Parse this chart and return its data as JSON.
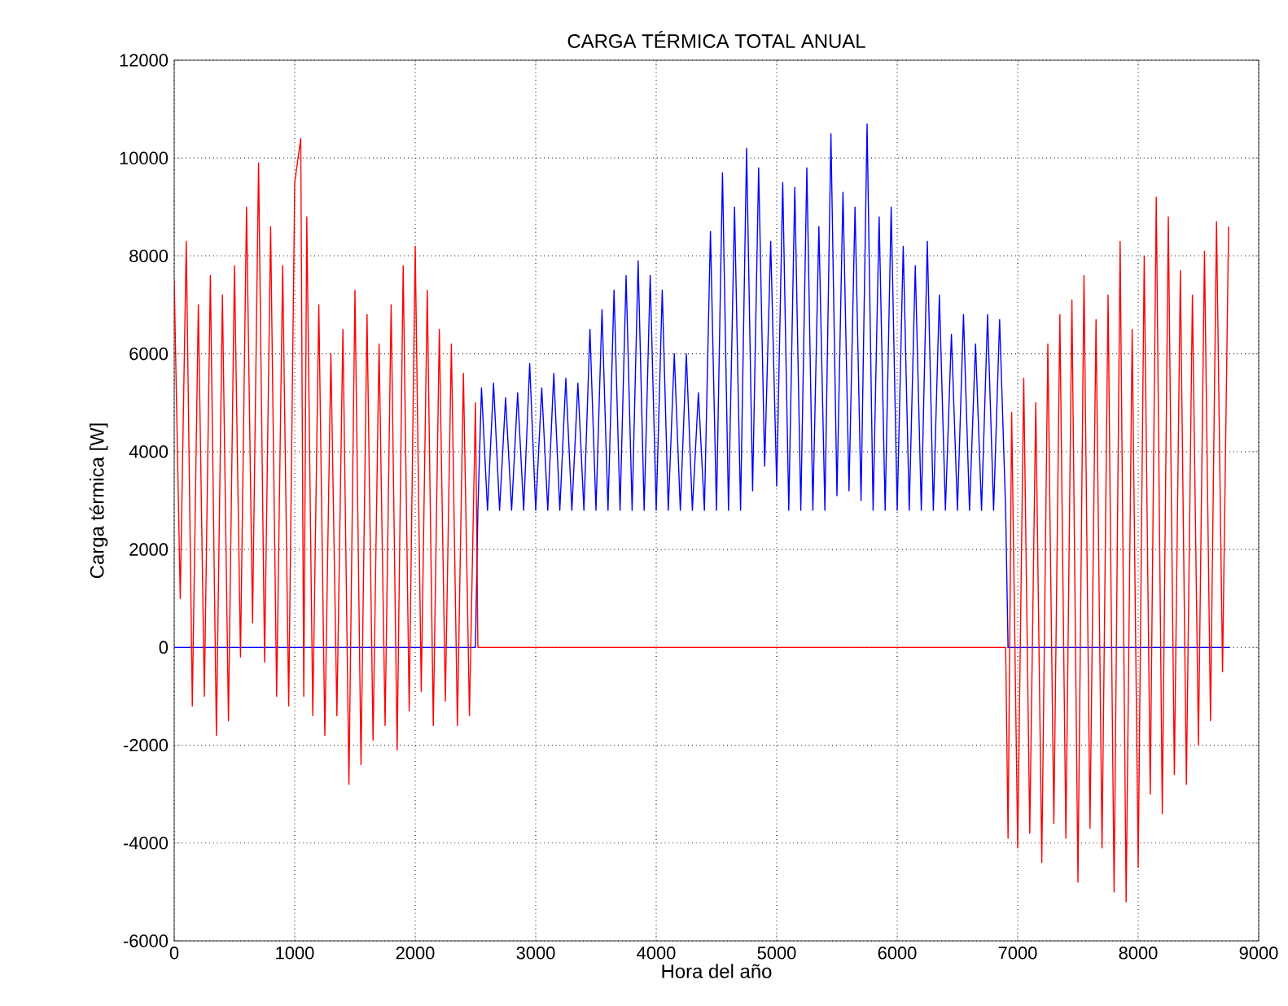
{
  "chart_data": {
    "type": "line",
    "title": "CARGA TÉRMICA TOTAL ANUAL",
    "xlabel": "Hora del año",
    "ylabel": "Carga térmica [W]",
    "xlim": [
      0,
      9000
    ],
    "xticks": [
      0,
      1000,
      2000,
      3000,
      4000,
      5000,
      6000,
      7000,
      8000,
      9000
    ],
    "ylim": [
      -6000,
      12000
    ],
    "yticks": [
      -6000,
      -4000,
      -2000,
      0,
      2000,
      4000,
      6000,
      8000,
      10000,
      12000
    ],
    "grid": true,
    "marker": "none",
    "line_style": "solid",
    "series": [
      {
        "color": "#0000ff",
        "x": [
          0,
          2500,
          2520,
          2550,
          2600,
          2650,
          2700,
          2750,
          2800,
          2850,
          2900,
          2950,
          3000,
          3050,
          3100,
          3150,
          3200,
          3250,
          3300,
          3350,
          3400,
          3450,
          3500,
          3550,
          3600,
          3650,
          3700,
          3750,
          3800,
          3850,
          3900,
          3950,
          4000,
          4050,
          4100,
          4150,
          4200,
          4250,
          4300,
          4350,
          4400,
          4450,
          4500,
          4550,
          4600,
          4650,
          4700,
          4750,
          4800,
          4850,
          4900,
          4950,
          5000,
          5050,
          5100,
          5150,
          5200,
          5250,
          5300,
          5350,
          5400,
          5450,
          5500,
          5550,
          5600,
          5650,
          5700,
          5750,
          5800,
          5850,
          5900,
          5950,
          6000,
          6050,
          6100,
          6150,
          6200,
          6250,
          6300,
          6350,
          6400,
          6450,
          6500,
          6550,
          6600,
          6650,
          6700,
          6750,
          6800,
          6850,
          6900,
          6920,
          8760
        ],
        "values": [
          0,
          0,
          2800,
          5300,
          2800,
          5400,
          2800,
          5100,
          2800,
          5200,
          2800,
          5800,
          2800,
          5300,
          2800,
          5600,
          2800,
          5500,
          2800,
          5400,
          2800,
          6500,
          2800,
          6900,
          2800,
          7300,
          2800,
          7600,
          2800,
          7900,
          2800,
          7600,
          2800,
          7300,
          2800,
          6000,
          2800,
          6000,
          2800,
          5200,
          2800,
          8500,
          2800,
          9700,
          2800,
          9000,
          2800,
          10200,
          3200,
          9800,
          3700,
          8300,
          3300,
          9500,
          2800,
          9400,
          2800,
          9800,
          2800,
          8600,
          2800,
          10500,
          3100,
          9300,
          3200,
          9000,
          3000,
          10700,
          2800,
          8800,
          2800,
          9000,
          2800,
          8200,
          2800,
          7800,
          2800,
          8300,
          2800,
          7200,
          2800,
          6400,
          2800,
          6800,
          2800,
          6200,
          2800,
          6800,
          2800,
          6700,
          2800,
          0,
          0
        ]
      },
      {
        "color": "#ff0000",
        "x": [
          0,
          50,
          100,
          150,
          200,
          250,
          300,
          350,
          400,
          450,
          500,
          550,
          600,
          650,
          700,
          750,
          800,
          850,
          900,
          950,
          1000,
          1050,
          1075,
          1100,
          1150,
          1200,
          1250,
          1300,
          1350,
          1400,
          1450,
          1500,
          1550,
          1600,
          1650,
          1700,
          1750,
          1800,
          1850,
          1900,
          1950,
          2000,
          2050,
          2100,
          2150,
          2200,
          2250,
          2300,
          2350,
          2400,
          2450,
          2500,
          2520,
          6900,
          6920,
          6950,
          7000,
          7050,
          7100,
          7150,
          7200,
          7250,
          7300,
          7350,
          7400,
          7450,
          7500,
          7550,
          7600,
          7650,
          7700,
          7750,
          7800,
          7850,
          7900,
          7950,
          8000,
          8050,
          8100,
          8150,
          8200,
          8250,
          8300,
          8350,
          8400,
          8450,
          8500,
          8550,
          8600,
          8650,
          8700,
          8750
        ],
        "values": [
          7500,
          1000,
          8300,
          -1200,
          7000,
          -1000,
          7600,
          -1800,
          7200,
          -1500,
          7800,
          -200,
          9000,
          500,
          9900,
          -300,
          8600,
          -1000,
          7800,
          -1200,
          9500,
          10400,
          -1000,
          8800,
          -1400,
          7000,
          -1800,
          6000,
          -1400,
          6500,
          -2800,
          7300,
          -2400,
          6800,
          -1900,
          6200,
          -1600,
          7000,
          -2100,
          7800,
          -1300,
          8200,
          -900,
          7300,
          -1600,
          6500,
          -1100,
          6200,
          -1600,
          5600,
          -1400,
          5000,
          0,
          0,
          -3900,
          4800,
          -4100,
          5500,
          -3800,
          5000,
          -4400,
          6200,
          -3600,
          6800,
          -3900,
          7100,
          -4800,
          7600,
          -3700,
          6700,
          -4100,
          7200,
          -5000,
          8300,
          -5200,
          6500,
          -4500,
          8000,
          -3000,
          9200,
          -3400,
          8800,
          -2600,
          7700,
          -2800,
          7200,
          -2000,
          8100,
          -1500,
          8700,
          -500,
          8600
        ]
      }
    ]
  }
}
